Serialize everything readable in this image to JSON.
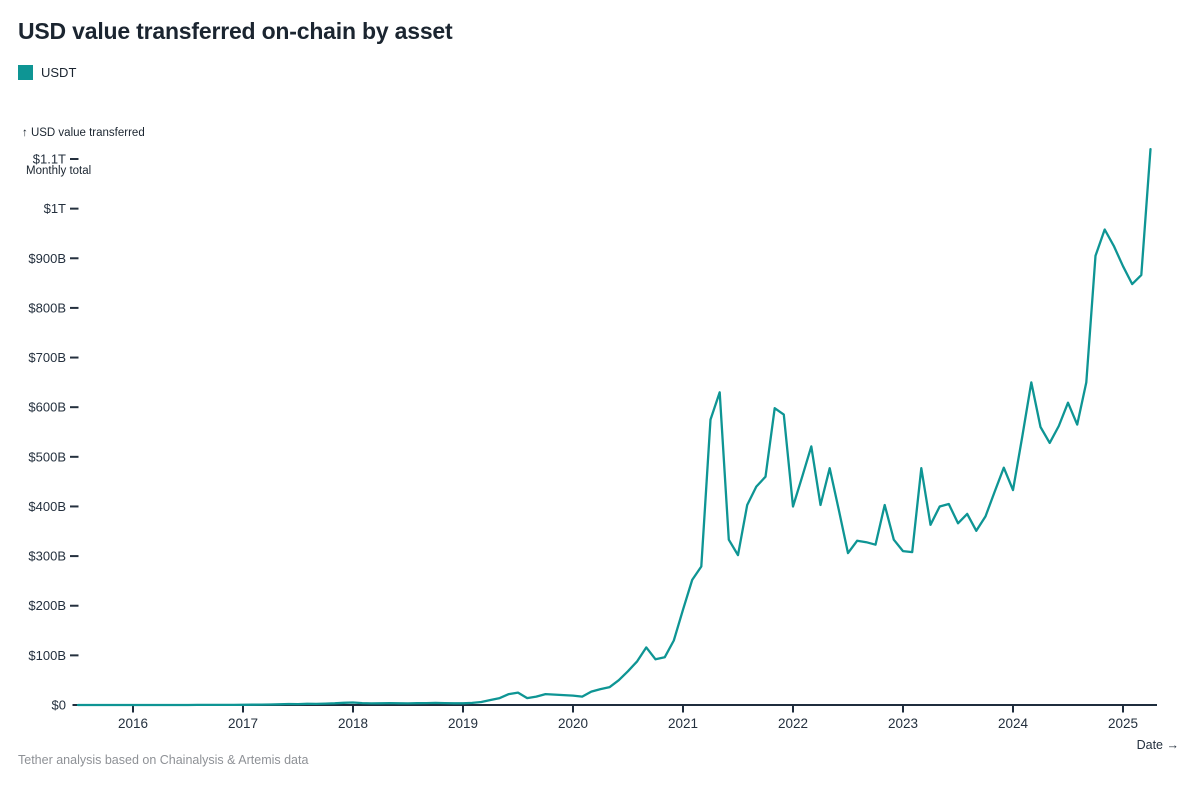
{
  "header": {
    "title": "USD value transferred on-chain by asset"
  },
  "legend": {
    "items": [
      {
        "label": "USDT",
        "color": "#0E9594"
      }
    ]
  },
  "y_axis": {
    "label_line1": "↑ USD value transferred",
    "label_line2": "Monthly total"
  },
  "x_axis": {
    "label": "Date →"
  },
  "footer": {
    "source": "Tether analysis based on Chainalysis & Artemis data"
  },
  "colors": {
    "line": "#0E9594",
    "axis": "#1f2d3d",
    "tick_text": "#24303e",
    "title_text": "#1b2530",
    "muted_text": "#8e9196"
  },
  "chart_data": {
    "type": "line",
    "title": "USD value transferred on-chain by asset",
    "ylabel": "USD value transferred — Monthly total",
    "xlabel": "Date",
    "legend_entries": [
      "USDT"
    ],
    "legend_position": "top-left",
    "grid": false,
    "unit": "USD billions per month",
    "ylim_billions": [
      0,
      1150
    ],
    "y_ticks": [
      "$0",
      "$100B",
      "$200B",
      "$300B",
      "$400B",
      "$500B",
      "$600B",
      "$700B",
      "$800B",
      "$900B",
      "$1T",
      "$1.1T"
    ],
    "y_tick_values_billions": [
      0,
      100,
      200,
      300,
      400,
      500,
      600,
      700,
      800,
      900,
      1000,
      1100
    ],
    "x_ticks": [
      "2016",
      "2017",
      "2018",
      "2019",
      "2020",
      "2021",
      "2022",
      "2023",
      "2024",
      "2025"
    ],
    "start_month": "2015-07",
    "end_month": "2025-04",
    "series": [
      {
        "name": "USDT",
        "color": "#0E9594",
        "monthly_values_billions": [
          0.01,
          0.01,
          0.01,
          0.02,
          0.02,
          0.03,
          0.03,
          0.04,
          0.05,
          0.05,
          0.06,
          0.08,
          0.1,
          0.12,
          0.15,
          0.2,
          0.25,
          0.3,
          0.4,
          0.6,
          0.8,
          1.0,
          1.5,
          2.0,
          1.8,
          2.4,
          2.2,
          2.8,
          3.4,
          4.5,
          5.0,
          3.8,
          3.2,
          3.4,
          3.8,
          3.5,
          3.3,
          3.6,
          3.9,
          4.2,
          3.8,
          3.4,
          3.5,
          4.2,
          6.0,
          10,
          14,
          22,
          25,
          14,
          17,
          22,
          21,
          20,
          19,
          17,
          27,
          32,
          36,
          50,
          68,
          88,
          116,
          92,
          96,
          130,
          192,
          252,
          279,
          575,
          630,
          333,
          302,
          403,
          440,
          460,
          598,
          585,
          400,
          460,
          521,
          403,
          477,
          393,
          306,
          331,
          328,
          323,
          403,
          333,
          310,
          308,
          477,
          363,
          400,
          405,
          366,
          385,
          351,
          380,
          430,
          478,
          433,
          540,
          650,
          560,
          528,
          562,
          609,
          565,
          650,
          905,
          958,
          925,
          884,
          848,
          866,
          1120
        ]
      }
    ]
  }
}
